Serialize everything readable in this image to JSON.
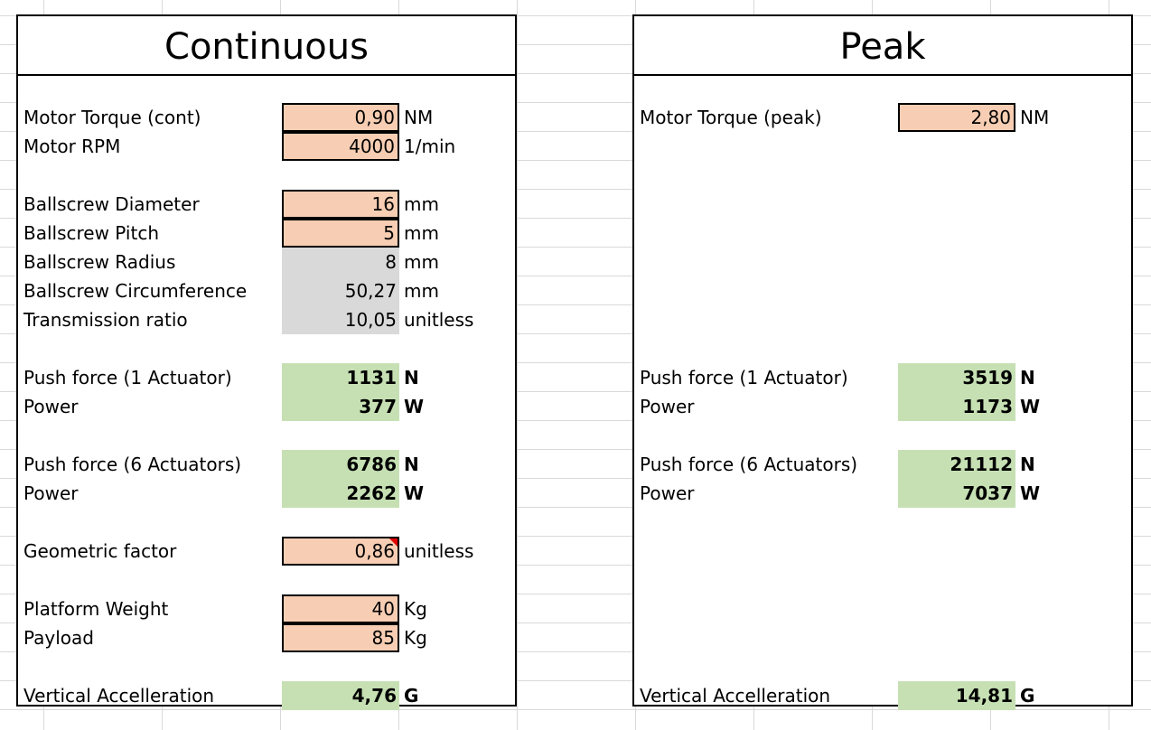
{
  "continuous": {
    "title": "Continuous",
    "rows": [
      {
        "label": "Motor Torque (cont)",
        "value": "0,90",
        "unit": "NM"
      },
      {
        "label": "Motor RPM",
        "value": "4000",
        "unit": "1/min"
      },
      {
        "label": "Ballscrew Diameter",
        "value": "16",
        "unit": "mm"
      },
      {
        "label": "Ballscrew Pitch",
        "value": "5",
        "unit": "mm"
      },
      {
        "label": "Ballscrew Radius",
        "value": "8",
        "unit": "mm"
      },
      {
        "label": "Ballscrew Circumference",
        "value": "50,27",
        "unit": "mm"
      },
      {
        "label": "Transmission ratio",
        "value": "10,05",
        "unit": "unitless"
      },
      {
        "label": "Push force (1 Actuator)",
        "value": "1131",
        "unit": "N"
      },
      {
        "label": "Power",
        "value": "377",
        "unit": "W"
      },
      {
        "label": "Push force (6 Actuators)",
        "value": "6786",
        "unit": "N"
      },
      {
        "label": "Power",
        "value": "2262",
        "unit": "W"
      },
      {
        "label": "Geometric factor",
        "value": "0,86",
        "unit": "unitless"
      },
      {
        "label": "Platform Weight",
        "value": "40",
        "unit": "Kg"
      },
      {
        "label": "Payload",
        "value": "85",
        "unit": "Kg"
      },
      {
        "label": "Vertical Accelleration",
        "value": "4,76",
        "unit": "G"
      }
    ]
  },
  "peak": {
    "title": "Peak",
    "rows": [
      {
        "label": "Motor Torque (peak)",
        "value": "2,80",
        "unit": "NM"
      },
      {
        "label": "Push force (1 Actuator)",
        "value": "3519",
        "unit": "N"
      },
      {
        "label": "Power",
        "value": "1173",
        "unit": "W"
      },
      {
        "label": "Push force (6 Actuators)",
        "value": "21112",
        "unit": "N"
      },
      {
        "label": "Power",
        "value": "7037",
        "unit": "W"
      },
      {
        "label": "Vertical Accelleration",
        "value": "14,81",
        "unit": "G"
      }
    ]
  },
  "colors": {
    "input_fill": "#f7ceb3",
    "calculated_fill": "#d9d9d9",
    "output_fill": "#c6e0b4",
    "comment_marker": "#e00000",
    "gridline": "#d9d9d9"
  }
}
